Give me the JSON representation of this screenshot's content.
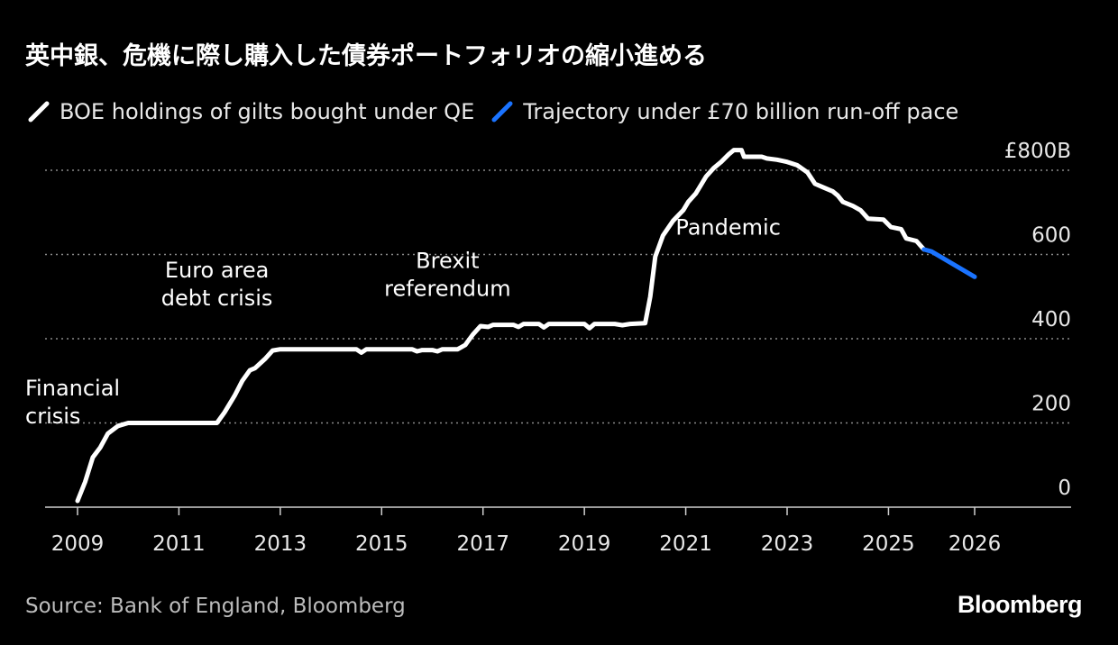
{
  "title": "英中銀、危機に際し購入した債券ポートフォリオの縮小進める",
  "legend": [
    {
      "label": "BOE holdings of gilts bought under QE",
      "color": "#ffffff"
    },
    {
      "label": "Trajectory under £70 billion run-off pace",
      "color": "#1a73ff"
    }
  ],
  "source": "Source: Bank of England, Bloomberg",
  "brand": "Bloomberg",
  "chart_data": {
    "type": "line",
    "xlim": [
      2009,
      2027.8
    ],
    "ylim": [
      0,
      800
    ],
    "grid": true,
    "x_ticks": [
      {
        "value": 2009,
        "label": "2009"
      },
      {
        "value": 2011,
        "label": "2011"
      },
      {
        "value": 2013,
        "label": "2013"
      },
      {
        "value": 2015,
        "label": "2015"
      },
      {
        "value": 2017,
        "label": "2017"
      },
      {
        "value": 2019,
        "label": "2019"
      },
      {
        "value": 2021,
        "label": "2021"
      },
      {
        "value": 2023,
        "label": "2023"
      },
      {
        "value": 2025,
        "label": "2025"
      },
      {
        "value": 2026.7,
        "label": "2026"
      }
    ],
    "y_ticks": [
      {
        "value": 0,
        "label": "0"
      },
      {
        "value": 200,
        "label": "200"
      },
      {
        "value": 400,
        "label": "400"
      },
      {
        "value": 600,
        "label": "600"
      },
      {
        "value": 800,
        "label": "£800B"
      }
    ],
    "annotations": [
      {
        "lines": [
          "Financial",
          "crisis"
        ],
        "x": 2009,
        "y": 265,
        "anchor": "start"
      },
      {
        "lines": [
          "Euro area",
          "debt crisis"
        ],
        "x": 2011.75,
        "y": 545,
        "anchor": "middle"
      },
      {
        "lines": [
          "Brexit",
          "referendum"
        ],
        "x": 2016.3,
        "y": 568,
        "anchor": "middle"
      },
      {
        "lines": [
          "Pandemic"
        ],
        "x": 2020.8,
        "y": 647,
        "anchor": "start"
      }
    ],
    "series": [
      {
        "name": "BOE holdings of gilts bought under QE",
        "color": "#ffffff",
        "points": [
          [
            2009.0,
            15
          ],
          [
            2009.15,
            60
          ],
          [
            2009.3,
            118
          ],
          [
            2009.45,
            142
          ],
          [
            2009.6,
            175
          ],
          [
            2009.8,
            193
          ],
          [
            2010.0,
            200
          ],
          [
            2010.5,
            200
          ],
          [
            2011.0,
            200
          ],
          [
            2011.5,
            200
          ],
          [
            2011.75,
            200
          ],
          [
            2011.9,
            225
          ],
          [
            2012.1,
            265
          ],
          [
            2012.25,
            300
          ],
          [
            2012.4,
            325
          ],
          [
            2012.5,
            330
          ],
          [
            2012.7,
            352
          ],
          [
            2012.85,
            372
          ],
          [
            2013.0,
            375
          ],
          [
            2014.0,
            375
          ],
          [
            2014.5,
            375
          ],
          [
            2014.6,
            367
          ],
          [
            2014.7,
            375
          ],
          [
            2015.0,
            375
          ],
          [
            2015.6,
            375
          ],
          [
            2015.7,
            370
          ],
          [
            2015.8,
            373
          ],
          [
            2016.0,
            373
          ],
          [
            2016.1,
            370
          ],
          [
            2016.2,
            375
          ],
          [
            2016.5,
            375
          ],
          [
            2016.65,
            385
          ],
          [
            2016.8,
            410
          ],
          [
            2016.95,
            430
          ],
          [
            2017.1,
            428
          ],
          [
            2017.2,
            433
          ],
          [
            2017.6,
            433
          ],
          [
            2017.7,
            428
          ],
          [
            2017.8,
            435
          ],
          [
            2018.1,
            435
          ],
          [
            2018.2,
            427
          ],
          [
            2018.3,
            435
          ],
          [
            2018.7,
            435
          ],
          [
            2019.0,
            435
          ],
          [
            2019.1,
            425
          ],
          [
            2019.2,
            435
          ],
          [
            2019.6,
            435
          ],
          [
            2019.75,
            432
          ],
          [
            2019.9,
            435
          ],
          [
            2020.2,
            437
          ],
          [
            2020.3,
            500
          ],
          [
            2020.4,
            595
          ],
          [
            2020.55,
            645
          ],
          [
            2020.75,
            680
          ],
          [
            2020.95,
            705
          ],
          [
            2021.05,
            725
          ],
          [
            2021.2,
            745
          ],
          [
            2021.4,
            785
          ],
          [
            2021.55,
            805
          ],
          [
            2021.7,
            820
          ],
          [
            2021.85,
            838
          ],
          [
            2021.95,
            848
          ],
          [
            2022.1,
            848
          ],
          [
            2022.15,
            832
          ],
          [
            2022.5,
            832
          ],
          [
            2022.6,
            828
          ],
          [
            2022.8,
            825
          ],
          [
            2023.0,
            820
          ],
          [
            2023.2,
            812
          ],
          [
            2023.4,
            795
          ],
          [
            2023.55,
            768
          ],
          [
            2023.7,
            760
          ],
          [
            2023.9,
            750
          ],
          [
            2024.0,
            740
          ],
          [
            2024.1,
            725
          ],
          [
            2024.3,
            715
          ],
          [
            2024.45,
            705
          ],
          [
            2024.6,
            685
          ],
          [
            2024.9,
            683
          ],
          [
            2025.05,
            665
          ],
          [
            2025.25,
            660
          ],
          [
            2025.35,
            638
          ],
          [
            2025.55,
            632
          ],
          [
            2025.7,
            612
          ]
        ]
      },
      {
        "name": "Trajectory under £70 billion run-off pace",
        "color": "#1a73ff",
        "points": [
          [
            2025.7,
            612
          ],
          [
            2025.85,
            607
          ],
          [
            2026.7,
            547
          ]
        ]
      }
    ]
  }
}
